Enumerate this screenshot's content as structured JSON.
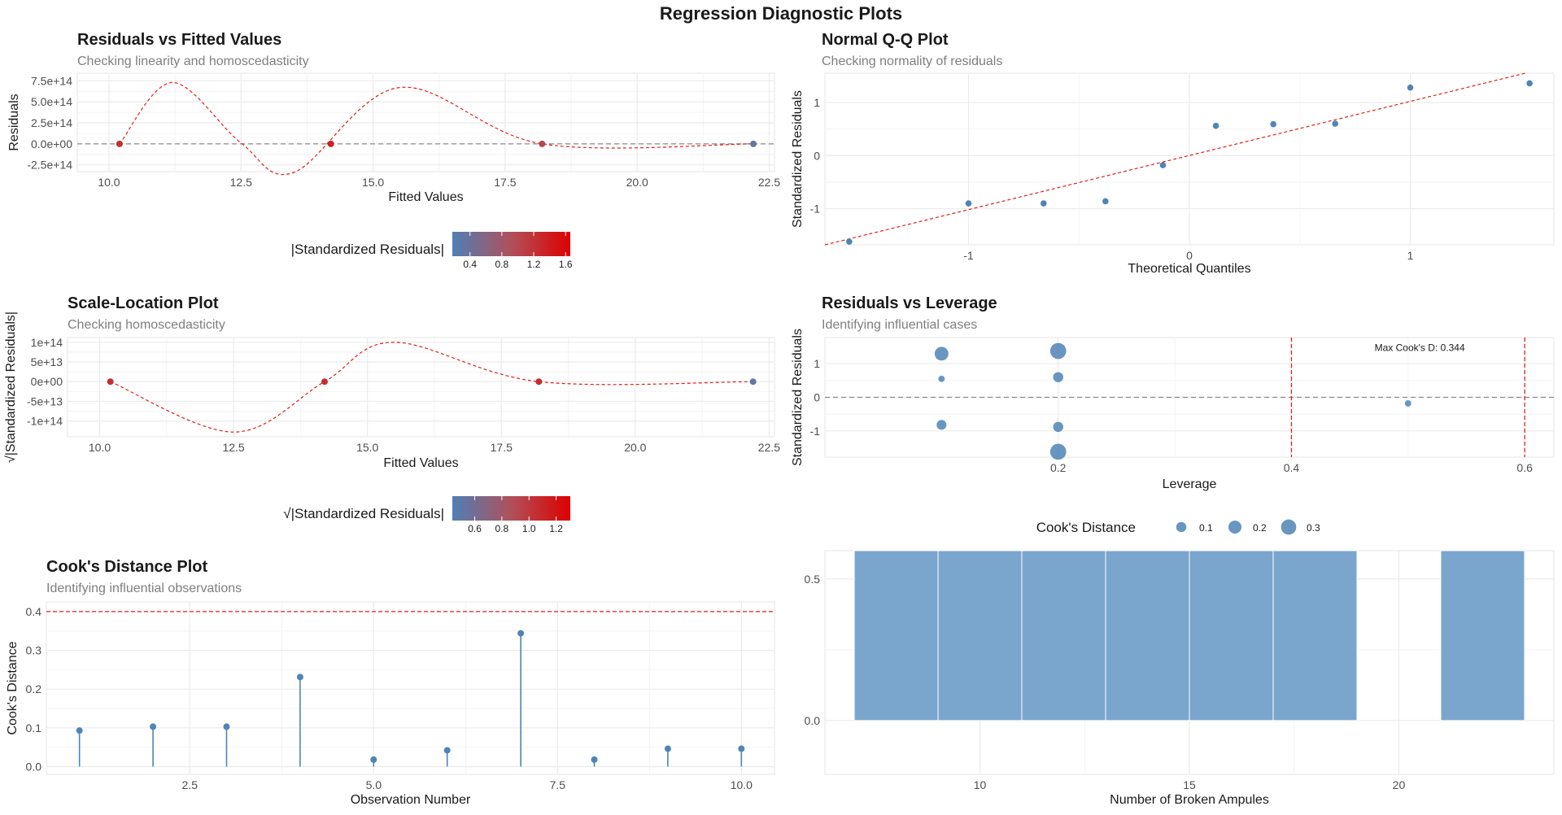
{
  "main_title": "Regression Diagnostic Plots",
  "colors": {
    "point": "#4f84b6",
    "ref_red": "#e0201b",
    "ref_gray": "#8c8c8c",
    "grid": "#ebebeb",
    "bar": "#7aa6cd",
    "grad_low": "#4f7fb5",
    "grad_mid": "#b0505a",
    "grad_high": "#dd0000"
  },
  "chart_data": [
    {
      "id": "rvf",
      "type": "scatter",
      "title": "Residuals vs Fitted Values",
      "subtitle": "Checking linearity and homoscedasticity",
      "xlabel": "Fitted Values",
      "ylabel": "Residuals",
      "xlim": [
        9.4,
        22.6
      ],
      "ylim": [
        -330000000000000.0,
        840000000000000.0
      ],
      "xticks": [
        10.0,
        12.5,
        15.0,
        17.5,
        20.0,
        22.5
      ],
      "xtick_labels": [
        "10.0",
        "12.5",
        "15.0",
        "17.5",
        "20.0",
        "22.5"
      ],
      "yticks": [
        -250000000000000.0,
        0,
        250000000000000.0,
        500000000000000.0,
        750000000000000.0
      ],
      "ytick_labels": [
        "-2.5e+14",
        "0.0e+00",
        "2.5e+14",
        "5.0e+14",
        "7.5e+14"
      ],
      "points": [
        {
          "x": 10.2,
          "y": 0,
          "c": 0.72
        },
        {
          "x": 14.2,
          "y": 0,
          "c": 0.78
        },
        {
          "x": 18.2,
          "y": 0,
          "c": 0.55
        },
        {
          "x": 22.2,
          "y": 0,
          "c": 0.1
        }
      ],
      "smooth": [
        [
          10.2,
          0
        ],
        [
          11.2,
          730000000000000.0
        ],
        [
          12.5,
          10000000000000.0
        ],
        [
          13.5,
          -340000000000000.0
        ],
        [
          15.5,
          670000000000000.0
        ],
        [
          18.2,
          0
        ],
        [
          22.2,
          0
        ]
      ],
      "hline": 0,
      "legend": {
        "title": "|Standardized Residuals|",
        "ticks": [
          "0.4",
          "0.8",
          "1.2",
          "1.6"
        ],
        "tick_pos": [
          0.15,
          0.42,
          0.69,
          0.96
        ]
      }
    },
    {
      "id": "qq",
      "type": "scatter",
      "title": "Normal Q-Q Plot",
      "subtitle": "Checking normality of residuals",
      "xlabel": "Theoretical Quantiles",
      "ylabel": "Standardized Residuals",
      "xlim": [
        -1.65,
        1.65
      ],
      "ylim": [
        -1.68,
        1.55
      ],
      "xticks": [
        -1,
        0,
        1
      ],
      "xtick_labels": [
        "-1",
        "0",
        "1"
      ],
      "yticks": [
        -1,
        0,
        1
      ],
      "ytick_labels": [
        "-1",
        "0",
        "1"
      ],
      "points": [
        {
          "x": -1.54,
          "y": -1.62
        },
        {
          "x": -1.0,
          "y": -0.9
        },
        {
          "x": -0.66,
          "y": -0.9
        },
        {
          "x": -0.38,
          "y": -0.86
        },
        {
          "x": -0.12,
          "y": -0.18
        },
        {
          "x": 0.12,
          "y": 0.56
        },
        {
          "x": 0.38,
          "y": 0.59
        },
        {
          "x": 0.66,
          "y": 0.6
        },
        {
          "x": 1.0,
          "y": 1.28
        },
        {
          "x": 1.54,
          "y": 1.36
        }
      ],
      "ref_line": [
        [
          -1.65,
          -1.68
        ],
        [
          1.52,
          1.55
        ]
      ]
    },
    {
      "id": "sl",
      "type": "scatter",
      "title": "Scale-Location Plot",
      "subtitle": "Checking homoscedasticity",
      "xlabel": "Fitted Values",
      "ylabel": "√|Standardized Residuals|",
      "xlim": [
        9.4,
        22.6
      ],
      "ylim": [
        -140000000000000.0,
        112000000000000.0
      ],
      "xticks": [
        10.0,
        12.5,
        15.0,
        17.5,
        20.0,
        22.5
      ],
      "xtick_labels": [
        "10.0",
        "12.5",
        "15.0",
        "17.5",
        "20.0",
        "22.5"
      ],
      "yticks": [
        -100000000000000.0,
        -50000000000000.0,
        0,
        50000000000000.0,
        100000000000000.0
      ],
      "ytick_labels": [
        "-1e+14",
        "-5e+13",
        "0e+00",
        "5e+13",
        "1e+14"
      ],
      "points": [
        {
          "x": 10.2,
          "y": 0,
          "c": 0.72
        },
        {
          "x": 14.2,
          "y": 0,
          "c": 0.72
        },
        {
          "x": 18.2,
          "y": 0,
          "c": 0.72
        },
        {
          "x": 22.2,
          "y": 0,
          "c": 0.1
        }
      ],
      "smooth": [
        [
          10.2,
          0
        ],
        [
          12.5,
          -128000000000000.0
        ],
        [
          14.2,
          0
        ],
        [
          15.5,
          100000000000000.0
        ],
        [
          18.2,
          0
        ],
        [
          22.2,
          0
        ]
      ],
      "legend": {
        "title": "√|Standardized Residuals|",
        "ticks": [
          "0.6",
          "0.8",
          "1.0",
          "1.2"
        ],
        "tick_pos": [
          0.19,
          0.42,
          0.65,
          0.88
        ]
      }
    },
    {
      "id": "rvl",
      "type": "scatter",
      "title": "Residuals vs Leverage",
      "subtitle": "Identifying influential cases",
      "xlabel": "Leverage",
      "ylabel": "Standardized Residuals",
      "xlim": [
        0.0,
        0.625
      ],
      "ylim": [
        -1.78,
        1.78
      ],
      "xticks": [
        0.2,
        0.4,
        0.6
      ],
      "xtick_labels": [
        "0.2",
        "0.4",
        "0.6"
      ],
      "yticks": [
        -1,
        0,
        1
      ],
      "ytick_labels": [
        "-1",
        "0",
        "1"
      ],
      "points": [
        {
          "x": 0.1,
          "y": 1.3,
          "s": 0.23
        },
        {
          "x": 0.1,
          "y": 0.55,
          "s": 0.02
        },
        {
          "x": 0.1,
          "y": -0.82,
          "s": 0.09
        },
        {
          "x": 0.2,
          "y": 1.38,
          "s": 0.34
        },
        {
          "x": 0.2,
          "y": 0.6,
          "s": 0.1
        },
        {
          "x": 0.2,
          "y": -0.88,
          "s": 0.1
        },
        {
          "x": 0.2,
          "y": -1.62,
          "s": 0.34
        },
        {
          "x": 0.5,
          "y": -0.18,
          "s": 0.02
        }
      ],
      "vlines": [
        0.4,
        0.6
      ],
      "hline": 0,
      "annotation": "Max Cook's D: 0.344",
      "annotation_at": [
        0.51,
        1.5
      ],
      "legend": {
        "title": "Cook's Distance",
        "labels": [
          "0.1",
          "0.2",
          "0.3"
        ],
        "values": [
          0.1,
          0.2,
          0.3
        ]
      }
    },
    {
      "id": "cd",
      "type": "lollipop",
      "title": "Cook's Distance Plot",
      "subtitle": "Identifying influential observations",
      "xlabel": "Observation Number",
      "ylabel": "Cook's Distance",
      "xlim": [
        0.55,
        10.45
      ],
      "ylim": [
        -0.02,
        0.425
      ],
      "xticks": [
        2.5,
        5.0,
        7.5,
        10.0
      ],
      "xtick_labels": [
        "2.5",
        "5.0",
        "7.5",
        "10.0"
      ],
      "yticks": [
        0,
        0.1,
        0.2,
        0.3,
        0.4
      ],
      "ytick_labels": [
        "0.0",
        "0.1",
        "0.2",
        "0.3",
        "0.4"
      ],
      "x": [
        1,
        2,
        3,
        4,
        5,
        6,
        7,
        8,
        9,
        10
      ],
      "values": [
        0.093,
        0.103,
        0.103,
        0.231,
        0.018,
        0.042,
        0.344,
        0.018,
        0.046,
        0.046
      ],
      "threshold": 0.4
    },
    {
      "id": "hist",
      "type": "bar",
      "xlabel": "Number of Broken Ampules",
      "ylabel": "",
      "xlim": [
        6.3,
        23.7
      ],
      "ylim": [
        -0.19,
        0.6
      ],
      "xticks": [
        10,
        15,
        20
      ],
      "xtick_labels": [
        "10",
        "15",
        "20"
      ],
      "yticks": [
        0,
        0.5
      ],
      "ytick_labels": [
        "0.0",
        "0.5"
      ],
      "bins": [
        [
          7,
          9
        ],
        [
          9,
          11
        ],
        [
          11,
          13
        ],
        [
          13,
          15
        ],
        [
          15,
          17
        ],
        [
          17,
          19
        ],
        [
          21,
          23
        ]
      ],
      "values": [
        0.6,
        0.6,
        0.6,
        0.6,
        0.6,
        0.6,
        0.6
      ]
    }
  ]
}
